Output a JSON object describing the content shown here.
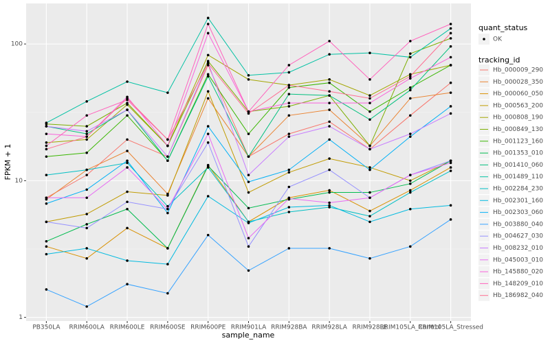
{
  "chart_data": {
    "type": "line",
    "x_label": "sample_name",
    "y_label": "FPKM + 1",
    "log_scale": true,
    "grid": true,
    "categories": [
      "PB350LA",
      "RRIM600LA",
      "RRIM600LE",
      "RRIM600SE",
      "RRIM600PE",
      "RRIM901LA",
      "RRIM928BA",
      "RRIM928LA",
      "RRIM928LE",
      "RRIM105LA_Control",
      "RRIM105LA_Stressed"
    ],
    "ylim": [
      0.94,
      198
    ],
    "yticks": [
      1,
      10,
      100
    ],
    "point_legend_title": "quant_status",
    "point_legend": [
      "OK"
    ],
    "legend_title": "tracking_id",
    "series": [
      {
        "name": "Hb_000009_290",
        "color": "#F8766D",
        "values": [
          7.5,
          11,
          20,
          15,
          70,
          15,
          22,
          27,
          17,
          30,
          52
        ]
      },
      {
        "name": "Hb_000028_350",
        "color": "#EA8331",
        "values": [
          7.3,
          12,
          16.5,
          8,
          40,
          15,
          30,
          33,
          18,
          40,
          44
        ]
      },
      {
        "name": "Hb_000060_050",
        "color": "#D89000",
        "values": [
          3.3,
          2.7,
          4.5,
          3.2,
          13,
          5,
          7.5,
          8.5,
          6,
          8.5,
          12.5
        ]
      },
      {
        "name": "Hb_000563_200",
        "color": "#C09B00",
        "values": [
          5,
          5.7,
          8.3,
          7.8,
          45,
          8.2,
          11.5,
          14.5,
          12.5,
          10,
          14
        ]
      },
      {
        "name": "Hb_000808_190",
        "color": "#A3A500",
        "values": [
          19,
          20,
          36,
          18,
          83,
          55,
          50,
          55,
          42,
          60,
          70
        ]
      },
      {
        "name": "Hb_000849_130",
        "color": "#7CAE00",
        "values": [
          26,
          25,
          37,
          18,
          75,
          32,
          35,
          42,
          18,
          85,
          110
        ]
      },
      {
        "name": "Hb_001123_160",
        "color": "#39B600",
        "values": [
          15,
          16,
          30,
          14,
          60,
          22,
          48,
          52,
          32,
          48,
          70
        ]
      },
      {
        "name": "Hb_001353_010",
        "color": "#00BB4E",
        "values": [
          3.6,
          4.8,
          6.2,
          3.2,
          12.8,
          6.3,
          7.3,
          8.2,
          8.2,
          9.5,
          14
        ]
      },
      {
        "name": "Hb_001410_060",
        "color": "#00BF7D",
        "values": [
          25,
          22,
          33,
          14,
          58,
          15,
          43,
          42,
          28,
          46,
          96
        ]
      },
      {
        "name": "Hb_001489_110",
        "color": "#00C1A3",
        "values": [
          26.5,
          38,
          53,
          44,
          155,
          59,
          62,
          84,
          86,
          80,
          130
        ]
      },
      {
        "name": "Hb_002284_230",
        "color": "#00BFC4",
        "values": [
          11,
          12,
          13.5,
          6.5,
          12.5,
          5,
          5.9,
          6.4,
          5.5,
          8.2,
          11.8
        ]
      },
      {
        "name": "Hb_002301_160",
        "color": "#00BAE0",
        "values": [
          2.9,
          3.2,
          2.6,
          2.45,
          7.7,
          4.9,
          6.4,
          6.6,
          5,
          6.2,
          6.6
        ]
      },
      {
        "name": "Hb_002303_060",
        "color": "#00B0F6",
        "values": [
          6.8,
          8.6,
          14,
          5.8,
          25,
          9.8,
          12,
          20,
          12,
          21,
          35
        ]
      },
      {
        "name": "Hb_003880_040",
        "color": "#35A2FF",
        "values": [
          1.6,
          1.2,
          1.75,
          1.5,
          4,
          2.2,
          3.2,
          3.2,
          2.7,
          3.3,
          5.2
        ]
      },
      {
        "name": "Hb_004627_030",
        "color": "#9590FF",
        "values": [
          5,
          4.5,
          7,
          6.2,
          19,
          3.3,
          9,
          12,
          7.5,
          11,
          14
        ]
      },
      {
        "name": "Hb_008232_010",
        "color": "#C77CFF",
        "values": [
          25,
          23,
          33,
          15,
          73,
          11,
          21,
          25,
          17,
          22,
          31
        ]
      },
      {
        "name": "Hb_045003_010",
        "color": "#E76BF3",
        "values": [
          7.5,
          7.5,
          12.5,
          6.2,
          22,
          3.8,
          7.4,
          6.9,
          7.5,
          11,
          13.5
        ]
      },
      {
        "name": "Hb_145880_020",
        "color": "#FA62DB",
        "values": [
          22,
          21,
          41,
          18,
          120,
          32,
          37,
          37,
          37,
          56,
          80
        ]
      },
      {
        "name": "Hb_148209_010",
        "color": "#FF62BC",
        "values": [
          18,
          30,
          39,
          20,
          140,
          32,
          70,
          105,
          55,
          105,
          140
        ]
      },
      {
        "name": "Hb_186982_040",
        "color": "#FF6C91",
        "values": [
          17,
          21,
          40,
          20,
          72,
          31,
          50,
          45,
          40,
          58,
          120
        ]
      }
    ]
  }
}
